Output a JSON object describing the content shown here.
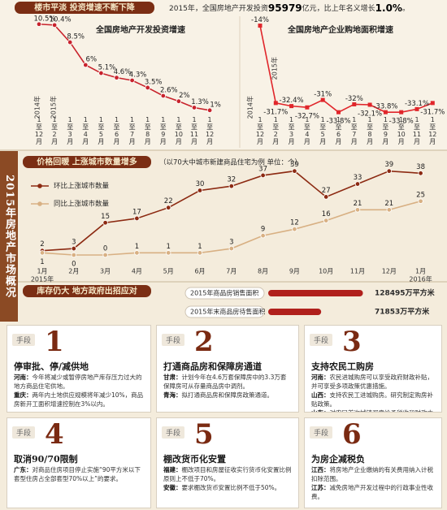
{
  "header": {
    "title": "楼市平淡  投资增速不断下降",
    "summary_parts": [
      "2015年，全国房地产开发投资",
      "95979",
      "亿元，比上年名义增长",
      "1.0%",
      "。"
    ]
  },
  "side_title": "2015年房地产市场概况",
  "sections": [
    {
      "title": "价格回暖  上涨城市数量增多",
      "note": "（以70大中城市新建商品住宅为例  单位：个）"
    },
    {
      "title": "库存仍大  地方政府出招应对"
    }
  ],
  "chart_data": [
    {
      "type": "line",
      "title": "全国房地产开发投资增速",
      "categories": [
        "1至12月",
        "1至2月",
        "1至3月",
        "1至4月",
        "1至5月",
        "1至6月",
        "1至7月",
        "1至8月",
        "1至9月",
        "1至10月",
        "1至11月",
        "1至12月"
      ],
      "values": [
        10.5,
        10.4,
        8.5,
        6,
        5.1,
        4.6,
        4.3,
        3.5,
        2.6,
        2,
        1.3,
        1
      ],
      "value_labels": [
        "10.5%",
        "10.4%",
        "8.5%",
        "6%",
        "5.1%",
        "4.6%",
        "4.3%",
        "3.5%",
        "2.6%",
        "2%",
        "1.3%",
        "1%"
      ],
      "color": "#c8232c",
      "marker": "circle",
      "ylim": [
        0,
        12
      ],
      "annotations": [
        "2014年",
        "2015年"
      ]
    },
    {
      "type": "line",
      "title": "全国房地产企业购地面积增速",
      "categories": [
        "1至12月",
        "1至2月",
        "1至3月",
        "1至4月",
        "1至5月",
        "1至6月",
        "1至7月",
        "1至8月",
        "1至9月",
        "1至10月",
        "1至11月",
        "1至12月"
      ],
      "values": [
        -14,
        -31.7,
        -32.4,
        -32.7,
        -31,
        -33.8,
        -32,
        -32.1,
        -33.8,
        -33.8,
        -33.1,
        -31.7
      ],
      "value_labels": [
        "-14%",
        "-31.7%",
        "-32.4%",
        "-32.7%",
        "-31%",
        "-33.8%",
        "-32%",
        "-32.1%",
        "-33.8%",
        "-33.8%",
        "-33.1%",
        "-31.7%"
      ],
      "color": "#e0262b",
      "marker": "square",
      "ylim": [
        -36,
        -10
      ],
      "annotations": [
        "2014年",
        "2015年"
      ]
    },
    {
      "type": "line",
      "categories": [
        "1月",
        "2月",
        "3月",
        "4月",
        "5月",
        "6月",
        "7月",
        "8月",
        "9月",
        "10月",
        "11月",
        "12月",
        "1月"
      ],
      "annotations": [
        "2015年",
        "2016年"
      ],
      "ylim": [
        0,
        40
      ],
      "legend": "upper left",
      "marker": "circle",
      "series": [
        {
          "name": "环比上涨城市数量",
          "color": "#8c2a12",
          "values": [
            2,
            3,
            15,
            17,
            22,
            30,
            32,
            37,
            39,
            27,
            33,
            39,
            38
          ]
        },
        {
          "name": "同比上涨城市数量",
          "color": "#d8b083",
          "values": [
            1,
            0,
            0,
            1,
            1,
            1,
            3,
            9,
            12,
            16,
            21,
            21,
            25
          ]
        }
      ]
    },
    {
      "type": "bar",
      "orientation": "horizontal",
      "categories": [
        "2015年商品房销售面积",
        "2015年末商品房待售面积"
      ],
      "values": [
        128495,
        71853
      ],
      "value_labels": [
        "128495万平方米",
        "71853万平方米"
      ],
      "color": "#b0201c",
      "xlim": [
        0,
        140000
      ]
    }
  ],
  "cards": [
    {
      "tag": "手段",
      "number": "1",
      "title": "停审批、停/减供地",
      "items": [
        {
          "region": "河南：",
          "text": "今年将减少或暂停房地产库存压力过大的地方商品住宅供地。"
        },
        {
          "region": "重庆：",
          "text": "两年内土地供应规模将年减少10%，商品房新开工面积增速控制在3%以内。"
        }
      ]
    },
    {
      "tag": "手段",
      "number": "2",
      "title": "打通商品房和保障房通道",
      "items": [
        {
          "region": "甘肃：",
          "text": "计划今年在4.6万套保障房中的3.3万套保障房可从存量商品房中调剂。"
        },
        {
          "region": "青海：",
          "text": "拟打通商品房和保障房政策通道。"
        }
      ]
    },
    {
      "tag": "手段",
      "number": "3",
      "title": "支持农民工购房",
      "items": [
        {
          "region": "河南：",
          "text": "农民进城购房可以享受政府财政补贴，并可享受多项政策优惠措施。"
        },
        {
          "region": "山西：",
          "text": "支持农民工进城购房。研究制定购房补贴政策。"
        },
        {
          "region": "山东：",
          "text": "对农民首次城镇买房给予税收和财政支持。"
        }
      ]
    },
    {
      "tag": "手段",
      "number": "4",
      "title": "取消90/70限制",
      "items": [
        {
          "region": "广东：",
          "text": "对商品住房项目停止实施“90平方米以下套型住房占全部套型70%以上”的要求。"
        }
      ]
    },
    {
      "tag": "手段",
      "number": "5",
      "title": "棚改货币化安置",
      "items": [
        {
          "region": "福建：",
          "text": "棚改项目和房屋征收实行货币化安置比例原则上不低于70%。"
        },
        {
          "region": "安徽：",
          "text": "要求棚改货币安置比例不低于50%。"
        }
      ]
    },
    {
      "tag": "手段",
      "number": "6",
      "title": "为房企减税负",
      "items": [
        {
          "region": "江西：",
          "text": "将房地产企业缴纳的有关费用纳入计税扣除范围。"
        },
        {
          "region": "江苏：",
          "text": "减免房地产开发过程中的行政事业性收费。"
        }
      ]
    }
  ]
}
